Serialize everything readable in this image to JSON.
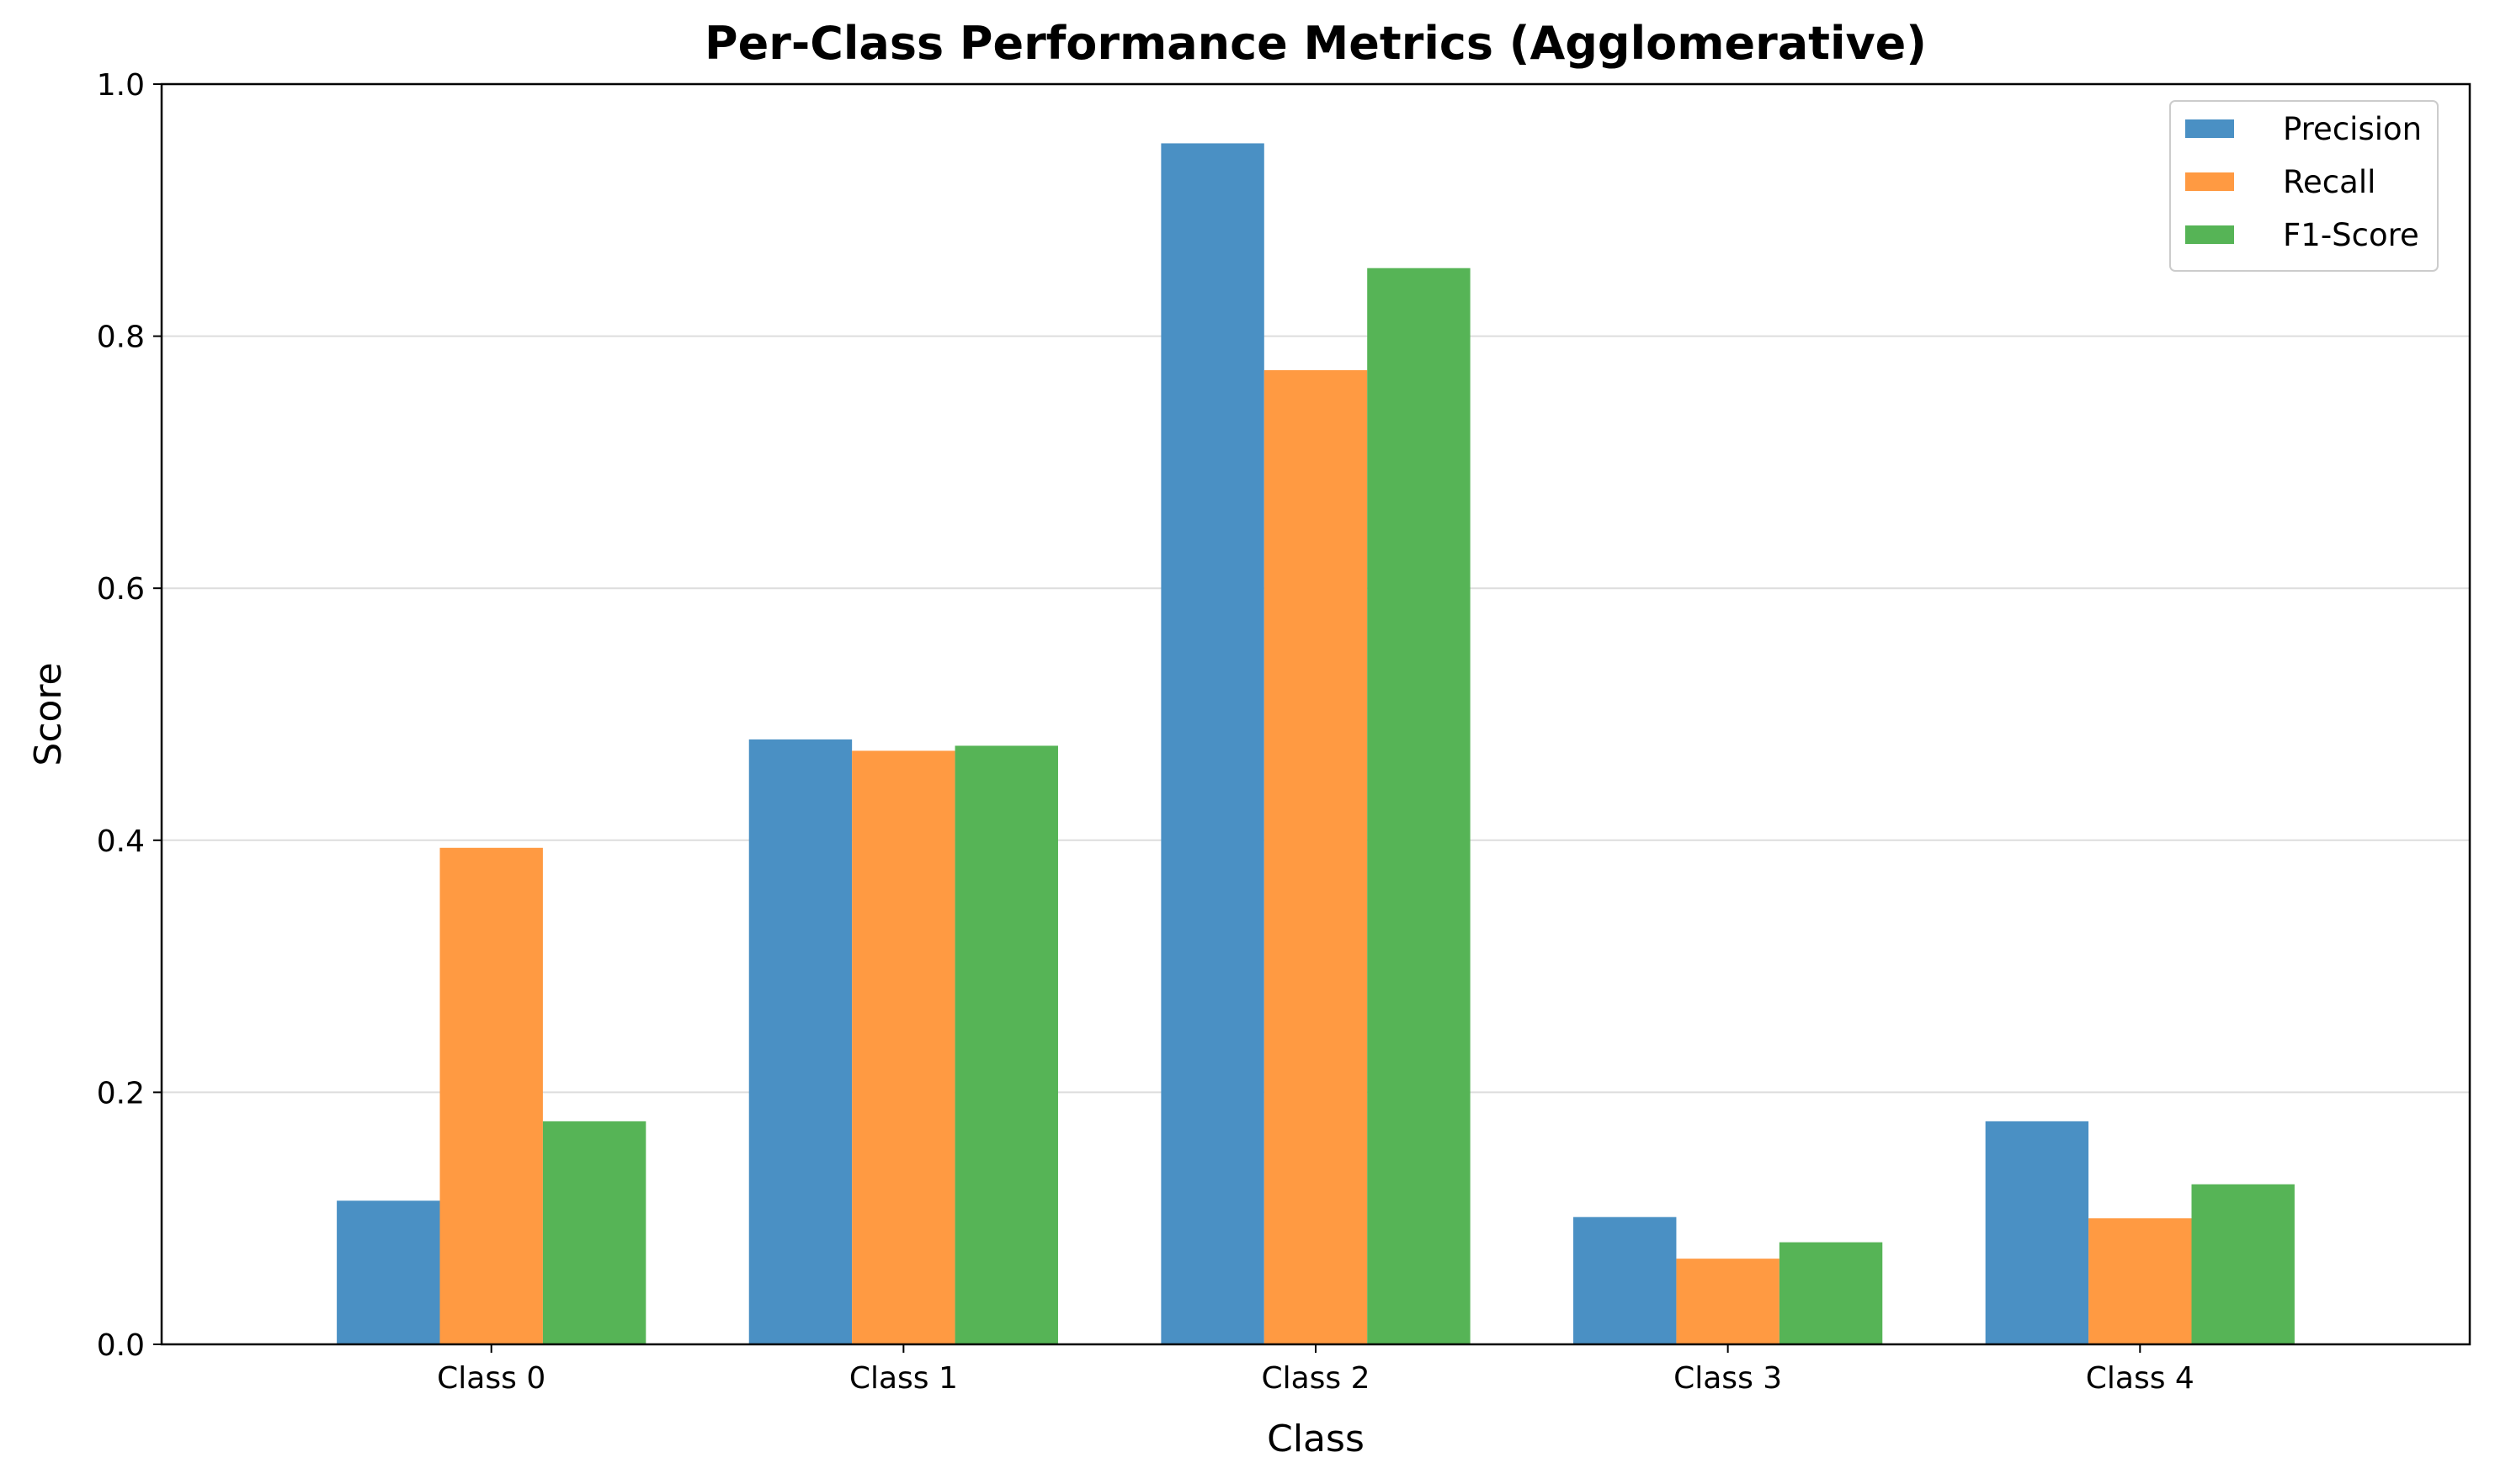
{
  "chart_data": {
    "type": "bar",
    "title": "Per-Class Performance Metrics (Agglomerative)",
    "xlabel": "Class",
    "ylabel": "Score",
    "categories": [
      "Class 0",
      "Class 1",
      "Class 2",
      "Class 3",
      "Class 4"
    ],
    "series": [
      {
        "name": "Precision",
        "color": "#4a90c4",
        "values": [
          0.114,
          0.48,
          0.953,
          0.101,
          0.177
        ]
      },
      {
        "name": "Recall",
        "color": "#ff9a42",
        "values": [
          0.394,
          0.471,
          0.773,
          0.068,
          0.1
        ]
      },
      {
        "name": "F1-Score",
        "color": "#56b456",
        "values": [
          0.177,
          0.475,
          0.854,
          0.081,
          0.127
        ]
      }
    ],
    "ylim": [
      0,
      1.0
    ],
    "yticks": [
      "0.0",
      "0.2",
      "0.4",
      "0.6",
      "0.8",
      "1.0"
    ],
    "grid": "horizontal",
    "legend_position": "top-right"
  }
}
